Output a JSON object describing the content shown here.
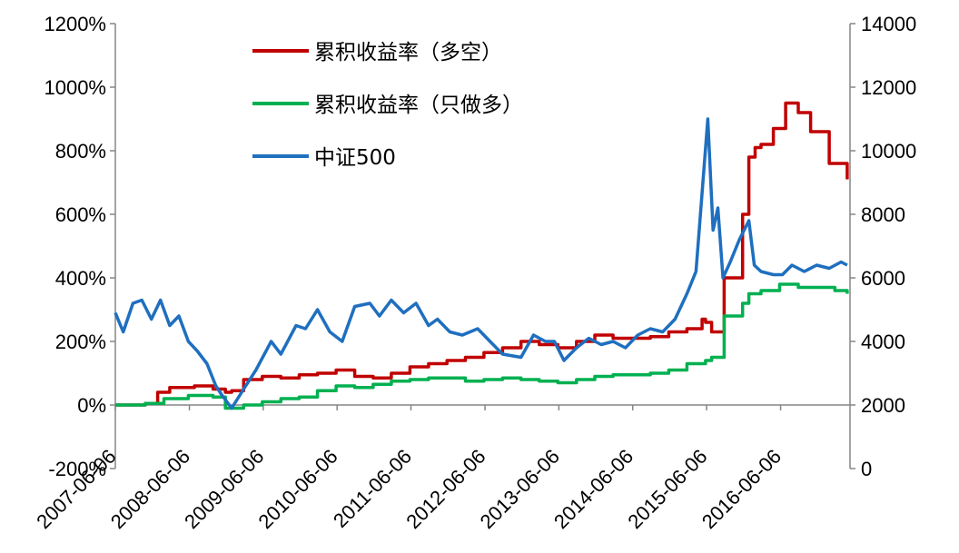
{
  "chart_data": {
    "type": "line",
    "title": "",
    "xlabel": "",
    "ylabel": "",
    "x_ticks": [
      "2007-06-06",
      "2008-06-06",
      "2009-06-06",
      "2010-06-06",
      "2011-06-06",
      "2012-06-06",
      "2013-06-06",
      "2014-06-06",
      "2015-06-06",
      "2016-06-06"
    ],
    "y_left": {
      "ticks": [
        "-200%",
        "0%",
        "200%",
        "400%",
        "600%",
        "800%",
        "1000%",
        "1200%"
      ],
      "range": [
        -200,
        1200
      ],
      "unit": "%"
    },
    "y_right": {
      "ticks": [
        "0",
        "2000",
        "4000",
        "6000",
        "8000",
        "10000",
        "12000",
        "14000"
      ],
      "range": [
        0,
        14000
      ]
    },
    "legend": {
      "placement": "top-center",
      "entries": [
        "累积收益率（多空）",
        "累积收益率（只做多）",
        "中证500"
      ]
    },
    "series": [
      {
        "name": "累积收益率（多空）",
        "axis": "left",
        "color": "#C00000",
        "x": [
          "2007-06-06",
          "2007-11-01",
          "2008-01-01",
          "2008-03-01",
          "2008-07-01",
          "2008-10-01",
          "2008-12-01",
          "2009-01-01",
          "2009-03-01",
          "2009-06-01",
          "2009-09-01",
          "2009-12-01",
          "2010-03-01",
          "2010-06-01",
          "2010-09-01",
          "2010-12-01",
          "2011-03-01",
          "2011-06-01",
          "2011-09-01",
          "2011-12-01",
          "2012-03-01",
          "2012-06-01",
          "2012-09-01",
          "2012-12-01",
          "2013-03-01",
          "2013-06-01",
          "2013-09-01",
          "2013-12-01",
          "2014-03-01",
          "2014-06-01",
          "2014-09-01",
          "2014-12-01",
          "2015-03-01",
          "2015-05-15",
          "2015-06-01",
          "2015-07-01",
          "2015-09-01",
          "2015-12-01",
          "2016-01-01",
          "2016-02-01",
          "2016-03-01",
          "2016-05-01",
          "2016-07-01",
          "2016-09-01",
          "2016-11-01",
          "2017-02-01",
          "2017-05-01"
        ],
        "values": [
          0,
          5,
          40,
          55,
          60,
          50,
          40,
          45,
          80,
          90,
          85,
          95,
          100,
          110,
          90,
          85,
          100,
          120,
          130,
          140,
          150,
          165,
          180,
          200,
          190,
          180,
          200,
          220,
          210,
          210,
          215,
          230,
          240,
          270,
          260,
          230,
          400,
          600,
          780,
          810,
          820,
          870,
          950,
          920,
          860,
          760,
          710
        ]
      },
      {
        "name": "累积收益率（只做多）",
        "axis": "left",
        "color": "#00B050",
        "x": [
          "2007-06-06",
          "2007-11-01",
          "2008-02-01",
          "2008-06-01",
          "2008-10-01",
          "2008-12-01",
          "2009-03-01",
          "2009-06-01",
          "2009-09-01",
          "2009-12-01",
          "2010-03-01",
          "2010-06-01",
          "2010-09-01",
          "2010-12-01",
          "2011-03-01",
          "2011-06-01",
          "2011-09-01",
          "2011-12-01",
          "2012-03-01",
          "2012-06-01",
          "2012-09-01",
          "2012-12-01",
          "2013-03-01",
          "2013-06-01",
          "2013-09-01",
          "2013-12-01",
          "2014-03-01",
          "2014-06-01",
          "2014-09-01",
          "2014-12-01",
          "2015-03-01",
          "2015-06-01",
          "2015-07-01",
          "2015-09-01",
          "2015-12-01",
          "2016-01-01",
          "2016-03-01",
          "2016-06-01",
          "2016-09-01",
          "2016-12-01",
          "2017-03-01",
          "2017-05-01"
        ],
        "values": [
          0,
          5,
          20,
          30,
          25,
          -10,
          0,
          10,
          20,
          25,
          45,
          60,
          55,
          65,
          75,
          80,
          85,
          85,
          75,
          80,
          85,
          80,
          75,
          70,
          80,
          90,
          95,
          95,
          100,
          110,
          130,
          140,
          150,
          280,
          320,
          350,
          360,
          380,
          370,
          370,
          360,
          350
        ]
      },
      {
        "name": "中证500",
        "axis": "right",
        "color": "#1F6FBF",
        "x": [
          "2007-06-06",
          "2007-07-15",
          "2007-09-01",
          "2007-10-15",
          "2007-12-01",
          "2008-01-15",
          "2008-03-01",
          "2008-04-15",
          "2008-06-01",
          "2008-07-15",
          "2008-09-01",
          "2008-10-15",
          "2008-11-15",
          "2009-01-01",
          "2009-03-01",
          "2009-05-01",
          "2009-07-15",
          "2009-09-01",
          "2009-11-15",
          "2010-01-01",
          "2010-03-01",
          "2010-05-01",
          "2010-07-01",
          "2010-09-01",
          "2010-11-15",
          "2011-01-01",
          "2011-03-01",
          "2011-05-01",
          "2011-07-01",
          "2011-09-01",
          "2011-10-15",
          "2011-12-15",
          "2012-02-15",
          "2012-05-01",
          "2012-07-01",
          "2012-09-01",
          "2012-12-01",
          "2013-02-01",
          "2013-04-01",
          "2013-05-15",
          "2013-07-01",
          "2013-09-01",
          "2013-11-01",
          "2014-01-01",
          "2014-03-01",
          "2014-05-01",
          "2014-07-01",
          "2014-09-01",
          "2014-11-01",
          "2015-01-01",
          "2015-03-01",
          "2015-04-15",
          "2015-06-12",
          "2015-07-08",
          "2015-08-01",
          "2015-08-26",
          "2015-10-01",
          "2015-11-15",
          "2016-01-01",
          "2016-01-28",
          "2016-03-01",
          "2016-05-01",
          "2016-06-15",
          "2016-08-01",
          "2016-10-01",
          "2016-12-01",
          "2017-02-01",
          "2017-04-01",
          "2017-05-01"
        ],
        "values": [
          4900,
          4300,
          5200,
          5300,
          4700,
          5300,
          4500,
          4800,
          4000,
          3700,
          3300,
          2600,
          2300,
          1900,
          2500,
          3100,
          4000,
          3600,
          4500,
          4400,
          5000,
          4300,
          4000,
          5100,
          5200,
          4800,
          5300,
          4900,
          5200,
          4500,
          4700,
          4300,
          4200,
          4400,
          4000,
          3600,
          3500,
          4200,
          4000,
          4000,
          3400,
          3800,
          4100,
          3900,
          4000,
          3800,
          4200,
          4400,
          4300,
          4700,
          5500,
          6200,
          11000,
          7500,
          8200,
          6000,
          6500,
          7200,
          7800,
          6400,
          6200,
          6100,
          6100,
          6400,
          6200,
          6400,
          6300,
          6500,
          6400
        ]
      }
    ]
  }
}
